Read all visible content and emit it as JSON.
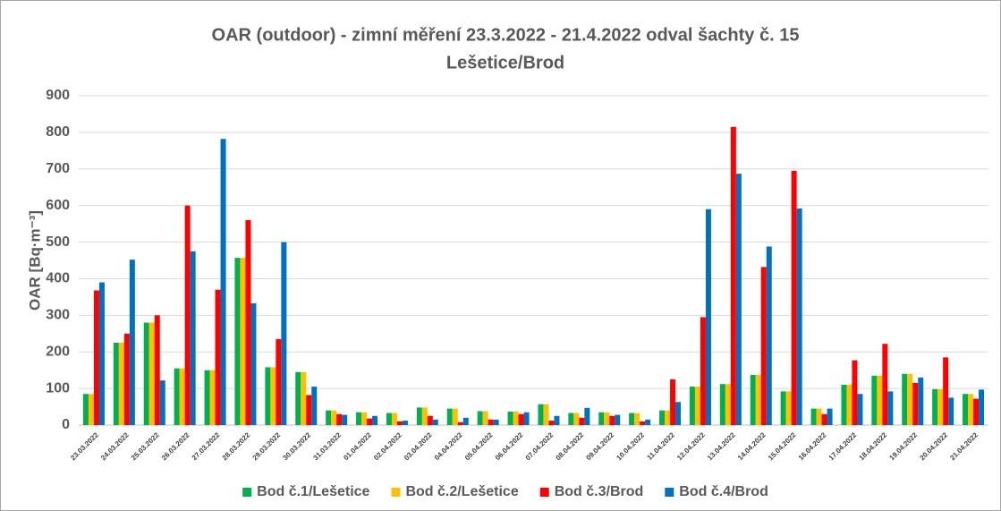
{
  "chart_data": {
    "type": "bar",
    "title": [
      "OAR (outdoor) - zimní měření 23.3.2022 - 21.4.2022 odval šachty č. 15",
      "Lešetice/Brod"
    ],
    "y_label": "OAR [Bq·m⁻³]",
    "categories": [
      "23.03.2022",
      "24.03.2022",
      "25.03.2022",
      "26.03.2022",
      "27.03.2022",
      "28.03.2022",
      "29.03.2022",
      "30.03.2022",
      "31.03.2022",
      "01.04.2022",
      "02.04.2022",
      "03.04.2022",
      "04.04.2022",
      "05.04.2022",
      "06.04.2022",
      "07.04.2022",
      "08.04.2022",
      "09.04.2022",
      "10.04.2022",
      "11.04.2022",
      "12.04.2022",
      "13.04.2022",
      "14.04.2022",
      "15.04.2022",
      "16.04.2022",
      "17.04.2022",
      "18.04.2022",
      "19.04.2022",
      "20.04.2022",
      "21.04.2022"
    ],
    "series": [
      {
        "name": "Bod č.1/Lešetice",
        "color": "#00b050",
        "values": [
          85,
          225,
          280,
          155,
          150,
          457,
          158,
          145,
          40,
          35,
          33,
          48,
          45,
          38,
          37,
          57,
          33,
          35,
          33,
          40,
          105,
          112,
          137,
          92,
          45,
          110,
          135,
          140,
          98,
          85
        ]
      },
      {
        "name": "Bod č.2/Lešetice",
        "color": "#ffc000",
        "values": [
          85,
          225,
          280,
          155,
          150,
          457,
          158,
          145,
          40,
          35,
          33,
          48,
          45,
          38,
          37,
          57,
          33,
          35,
          33,
          40,
          105,
          112,
          137,
          92,
          45,
          110,
          135,
          140,
          98,
          85
        ]
      },
      {
        "name": "Bod č.3/Brod",
        "color": "#ff0000",
        "values": [
          368,
          250,
          300,
          600,
          370,
          560,
          235,
          82,
          30,
          18,
          10,
          25,
          8,
          15,
          30,
          12,
          20,
          25,
          10,
          125,
          295,
          815,
          432,
          695,
          30,
          177,
          222,
          115,
          185,
          72
        ]
      },
      {
        "name": "Bod č.4/Brod",
        "color": "#0070c0",
        "values": [
          390,
          452,
          122,
          475,
          782,
          333,
          500,
          105,
          28,
          25,
          12,
          15,
          20,
          15,
          35,
          25,
          47,
          28,
          15,
          63,
          590,
          687,
          488,
          592,
          45,
          85,
          92,
          130,
          75,
          97
        ]
      }
    ],
    "ylim": [
      0,
      900
    ],
    "yticks": [
      0,
      100,
      200,
      300,
      400,
      500,
      600,
      700,
      800,
      900
    ],
    "grid": true,
    "legend": "bottom"
  }
}
